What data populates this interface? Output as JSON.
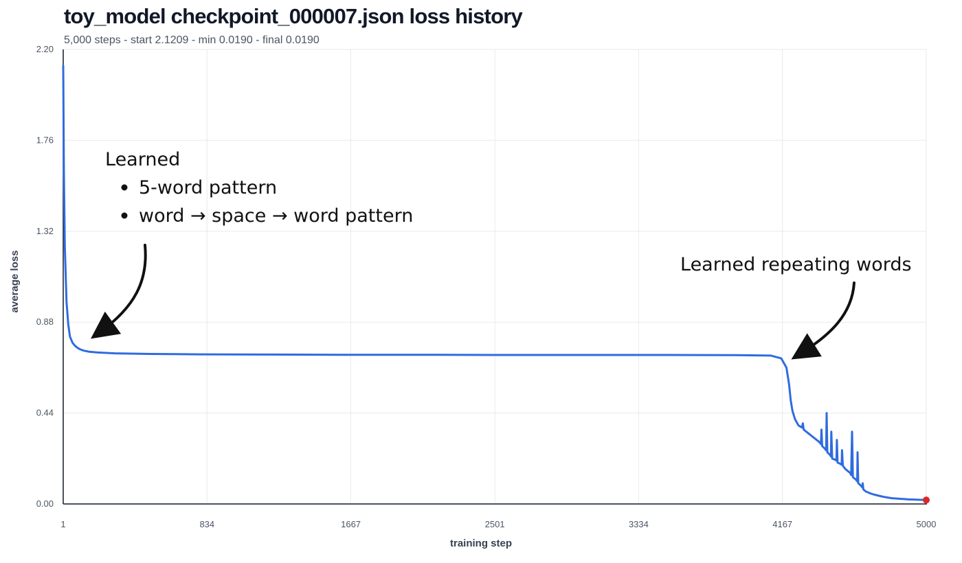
{
  "header": {
    "title": "toy_model checkpoint_000007.json loss history",
    "subtitle": "5,000 steps - start 2.1209 - min 0.0190 - final 0.0190"
  },
  "colors": {
    "line": "#2f6be0",
    "final_marker": "#dc2626",
    "grid": "#e9eaec",
    "axis": "#111827"
  },
  "annotations": {
    "early": {
      "heading": "Learned",
      "bullets": [
        "5-word pattern",
        "word → space → word pattern"
      ]
    },
    "late": {
      "text": "Learned repeating words"
    }
  },
  "chart_data": {
    "type": "line",
    "title": "toy_model checkpoint_000007.json loss history",
    "xlabel": "training step",
    "ylabel": "average loss",
    "xlim": [
      1,
      5000
    ],
    "ylim": [
      0,
      2.2
    ],
    "x_ticks": [
      1,
      834,
      1667,
      2501,
      3334,
      4167,
      5000
    ],
    "y_ticks": [
      "0.00",
      "0.44",
      "0.88",
      "1.32",
      "1.76",
      "2.20"
    ],
    "grid": true,
    "series": [
      {
        "x": [
          1,
          5,
          10,
          20,
          30,
          40,
          55,
          70,
          85,
          100,
          120,
          150,
          200,
          300,
          500,
          800,
          1200,
          1600,
          2000,
          2500,
          3000,
          3500,
          3900,
          4100,
          4160,
          4190,
          4205,
          4215,
          4225,
          4240,
          4260,
          4280,
          4285,
          4290,
          4320,
          4350,
          4380,
          4390,
          4393,
          4397,
          4410,
          4420,
          4423,
          4427,
          4440,
          4448,
          4450,
          4455,
          4470,
          4480,
          4482,
          4486,
          4500,
          4510,
          4512,
          4517,
          4530,
          4560,
          4565,
          4570,
          4575,
          4590,
          4600,
          4602,
          4606,
          4620,
          4630,
          4632,
          4636,
          4650,
          4680,
          4700,
          4750,
          4800,
          4900,
          5000
        ],
        "y": [
          2.12,
          1.6,
          1.25,
          0.98,
          0.87,
          0.81,
          0.78,
          0.765,
          0.755,
          0.748,
          0.742,
          0.737,
          0.733,
          0.729,
          0.726,
          0.724,
          0.723,
          0.722,
          0.722,
          0.721,
          0.721,
          0.721,
          0.72,
          0.718,
          0.705,
          0.66,
          0.58,
          0.5,
          0.45,
          0.41,
          0.38,
          0.37,
          0.39,
          0.36,
          0.34,
          0.32,
          0.3,
          0.29,
          0.36,
          0.28,
          0.27,
          0.26,
          0.44,
          0.25,
          0.24,
          0.23,
          0.35,
          0.22,
          0.215,
          0.21,
          0.31,
          0.2,
          0.195,
          0.19,
          0.26,
          0.185,
          0.17,
          0.15,
          0.14,
          0.35,
          0.13,
          0.12,
          0.11,
          0.25,
          0.1,
          0.09,
          0.08,
          0.1,
          0.07,
          0.06,
          0.05,
          0.045,
          0.035,
          0.028,
          0.022,
          0.019
        ]
      }
    ],
    "final_point": {
      "x": 5000,
      "y": 0.019
    }
  }
}
